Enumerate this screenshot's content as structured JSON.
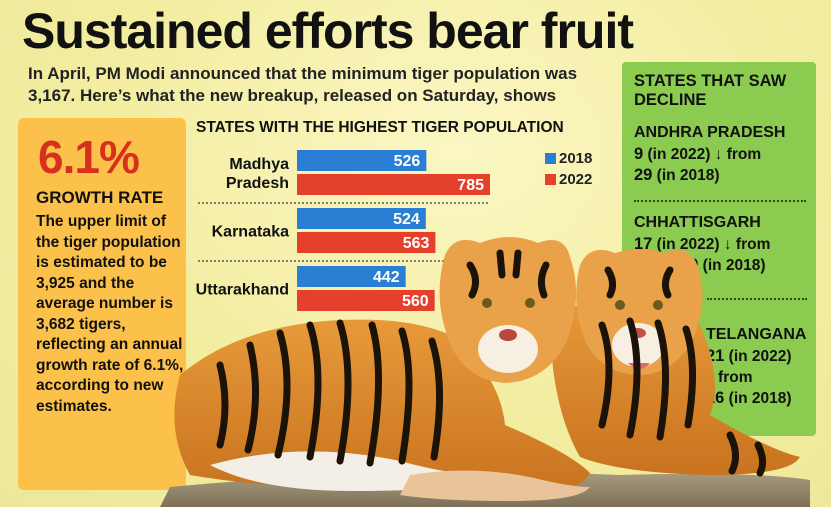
{
  "headline": "Sustained efforts bear fruit",
  "intro": "In April, PM Modi announced that the minimum tiger population was 3,167. Here’s what the new breakup, released on Saturday, shows",
  "growth": {
    "value": "6.1%",
    "label": "GROWTH RATE",
    "text": "The upper limit of the tiger population is estimated to be 3,925 and the average number is 3,682 tigers, reflecting an annual growth rate of 6.1%, according to new estimates."
  },
  "decline": {
    "title": "STATES THAT SAW DECLINE",
    "states": [
      {
        "name": "ANDHRA PRADESH",
        "v2022": "9",
        "tag2022": " (in 2022) ↓ from",
        "v2018": "29",
        "tag2018": " (in 2018)"
      },
      {
        "name": "CHHATTISGARH",
        "v2022": "17",
        "tag2022": " (in 2022) ↓ from",
        "v2018": "19",
        "tag2018": " (in 2018)"
      },
      {
        "name": "TELANGANA",
        "v2022": "21",
        "tag2022": " (in 2022)",
        "arrow": "↓ from",
        "v2018": "26",
        "tag2018": " (in 2018)"
      }
    ]
  },
  "colors": {
    "series2018": "#2a7fd4",
    "series2022": "#e5402c",
    "growthPanel": "#fbc14a",
    "declinePanel": "#8bcb4f"
  },
  "chart_data": {
    "type": "bar",
    "orientation": "horizontal",
    "title": "STATES WITH THE HIGHEST TIGER POPULATION",
    "categories": [
      "Madhya Pradesh",
      "Karnataka",
      "Uttarakhand"
    ],
    "category_lines": [
      [
        "Madhya",
        "Pradesh"
      ],
      [
        "Karnataka"
      ],
      [
        "Uttarakhand"
      ]
    ],
    "series": [
      {
        "name": "2018",
        "color": "#2a7fd4",
        "values": [
          526,
          524,
          442
        ]
      },
      {
        "name": "2022",
        "color": "#e5402c",
        "values": [
          785,
          563,
          560
        ]
      }
    ],
    "xlim": [
      0,
      785
    ],
    "legend": "top-right",
    "grid": false
  }
}
